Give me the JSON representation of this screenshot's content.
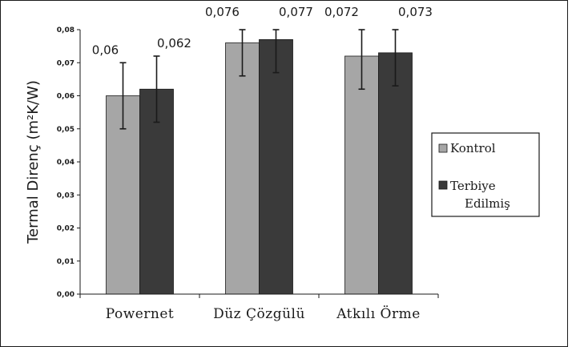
{
  "chart_data": {
    "type": "bar",
    "categories": [
      "Powernet",
      "Düz Çözgülü",
      "Atkılı Örme"
    ],
    "series": [
      {
        "name": "Kontrol",
        "values": [
          0.06,
          0.076,
          0.072
        ],
        "labels": [
          "0,06",
          "0,076",
          "0,072"
        ],
        "errors": [
          0.01,
          0.01,
          0.01
        ],
        "color": "#a6a6a6"
      },
      {
        "name": "Terbiye Edilmiş",
        "values": [
          0.062,
          0.077,
          0.073
        ],
        "labels": [
          "0,062",
          "0,077",
          "0,073"
        ],
        "errors": [
          0.01,
          0.01,
          0.01
        ],
        "color": "#3a3a3a"
      }
    ],
    "ylabel": "Termal Direnç (m²K/W)",
    "ylim": [
      0,
      0.08
    ],
    "yticks": [
      "0,00",
      "0,01",
      "0,02",
      "0,03",
      "0,04",
      "0,05",
      "0,06",
      "0,07",
      "0,08"
    ],
    "legend_position": "right",
    "grid": false
  }
}
